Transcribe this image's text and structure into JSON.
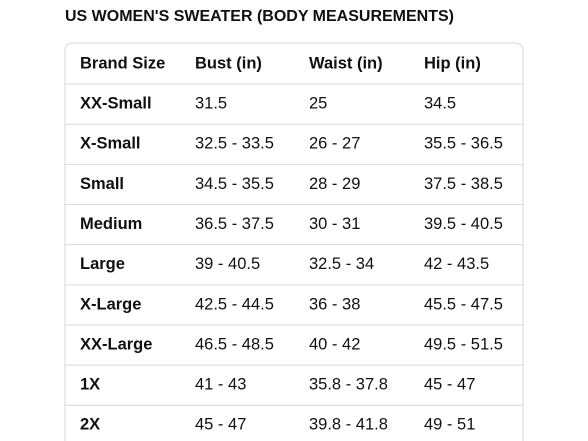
{
  "header": {
    "title": "US WOMEN'S SWEATER (BODY MEASUREMENTS)"
  },
  "table": {
    "columns": [
      "Brand Size",
      "Bust (in)",
      "Waist (in)",
      "Hip (in)"
    ],
    "rows": [
      [
        "XX-Small",
        "31.5",
        "25",
        "34.5"
      ],
      [
        "X-Small",
        "32.5 - 33.5",
        "26 - 27",
        "35.5 - 36.5"
      ],
      [
        "Small",
        "34.5 - 35.5",
        "28 - 29",
        "37.5 - 38.5"
      ],
      [
        "Medium",
        "36.5 - 37.5",
        "30 - 31",
        "39.5 - 40.5"
      ],
      [
        "Large",
        "39 - 40.5",
        "32.5 - 34",
        "42 - 43.5"
      ],
      [
        "X-Large",
        "42.5 - 44.5",
        "36 - 38",
        "45.5 - 47.5"
      ],
      [
        "XX-Large",
        "46.5 - 48.5",
        "40 - 42",
        "49.5 - 51.5"
      ],
      [
        "1X",
        "41 - 43",
        "35.8 - 37.8",
        "45 - 47"
      ],
      [
        "2X",
        "45 - 47",
        "39.8 - 41.8",
        "49 - 51"
      ]
    ]
  }
}
